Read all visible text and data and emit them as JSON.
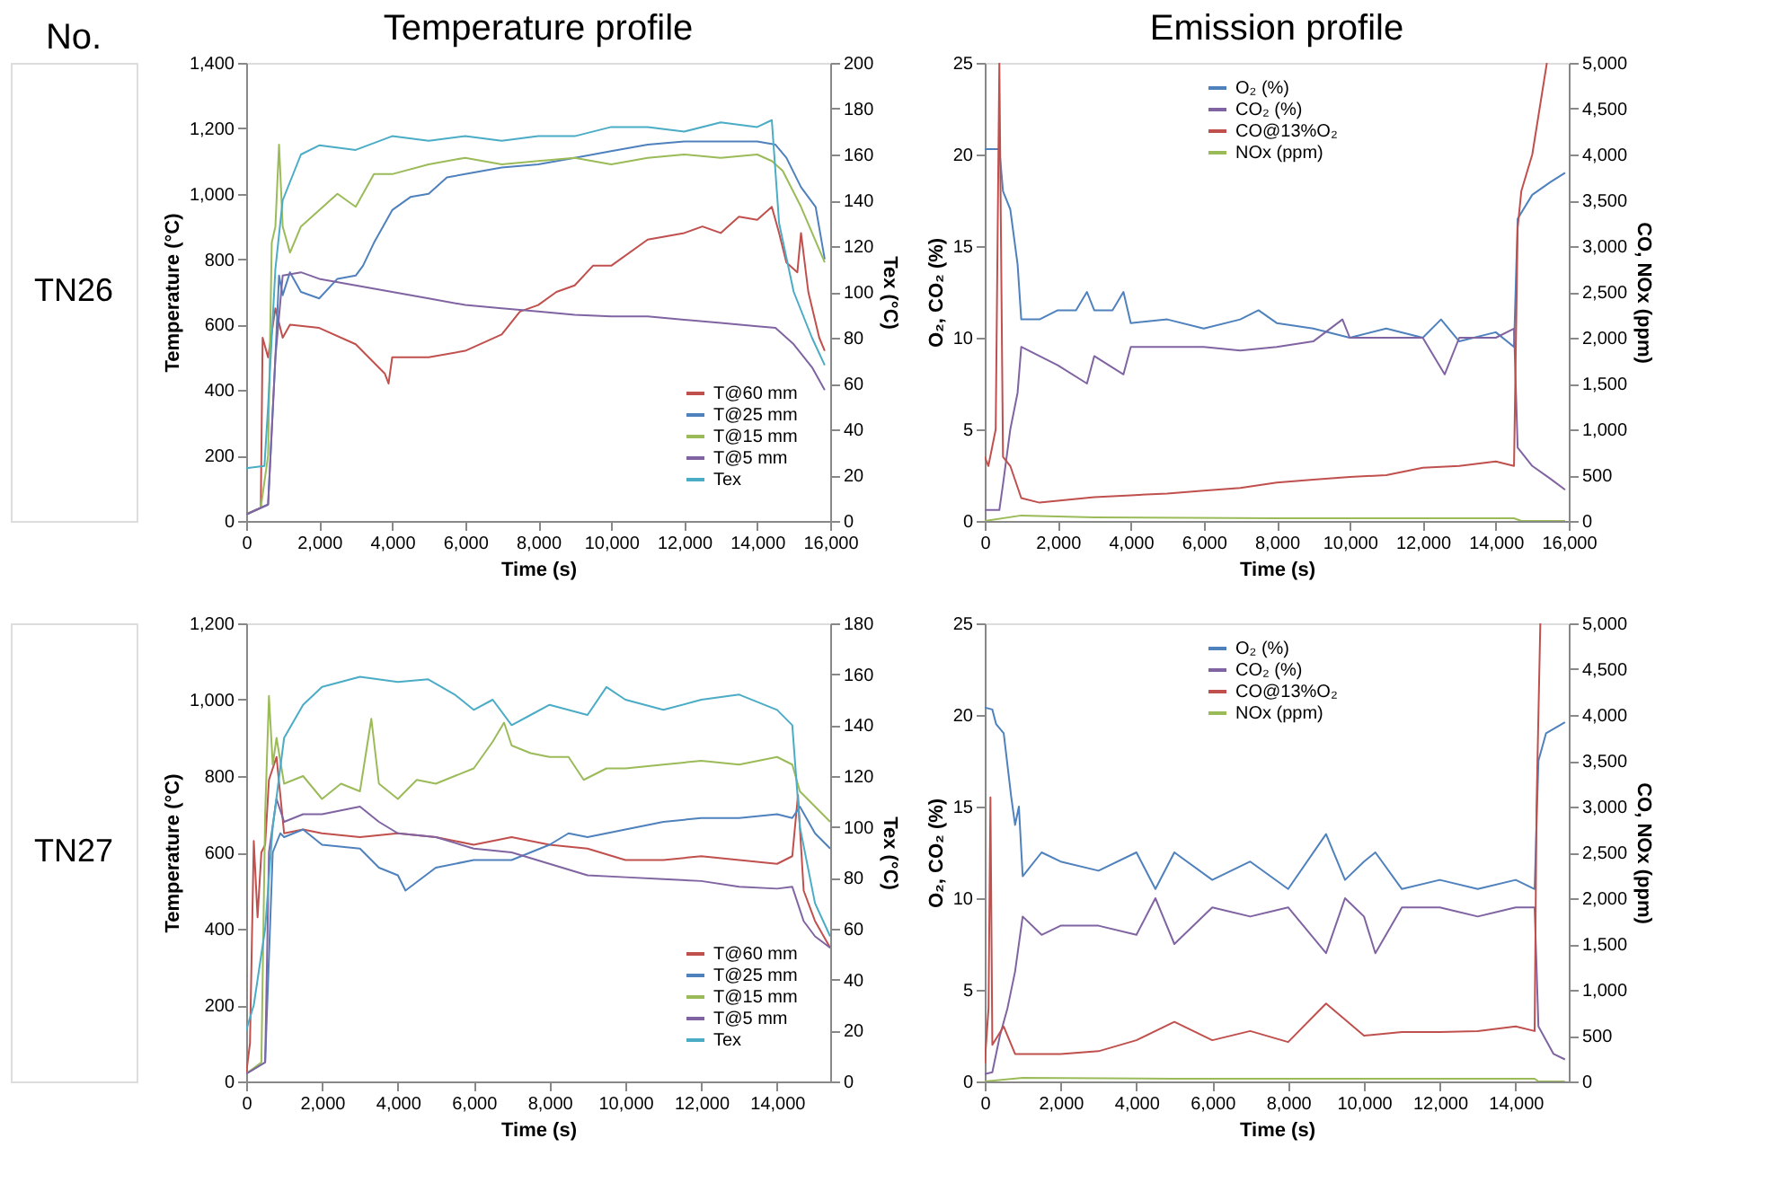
{
  "chart_data": [
    {
      "type": "line",
      "title": "Temperature profile",
      "annotations": [
        "No.",
        "TN26"
      ],
      "xlabel": "Time (s)",
      "ylabel": "Temperature (°C)",
      "y2label": "Tex (°C)",
      "xlim": [
        0,
        16000
      ],
      "xticks": [
        {
          "value": 0,
          "label": "0"
        },
        {
          "value": 2000,
          "label": "2,000"
        },
        {
          "value": 4000,
          "label": "4,000"
        },
        {
          "value": 6000,
          "label": "6,000"
        },
        {
          "value": 8000,
          "label": "8,000"
        },
        {
          "value": 10000,
          "label": "10,000"
        },
        {
          "value": 12000,
          "label": "12,000"
        },
        {
          "value": 14000,
          "label": "14,000"
        },
        {
          "value": 16000,
          "label": "16,000"
        }
      ],
      "ylim": [
        0,
        1400
      ],
      "yticks": [
        0,
        200,
        400,
        600,
        800,
        {
          "value": 1000,
          "label": "1,000"
        },
        {
          "value": 1200,
          "label": "1,200"
        },
        {
          "value": 1400,
          "label": "1,400"
        }
      ],
      "y2lim": [
        0,
        200
      ],
      "y2ticks": [
        0,
        20,
        40,
        60,
        80,
        100,
        120,
        140,
        160,
        180,
        200
      ],
      "legend": "bottom right",
      "series": [
        {
          "name": "T@60 mm",
          "color": "#c0504d",
          "x": [
            0,
            400,
            450,
            600,
            800,
            1000,
            1200,
            2000,
            3000,
            3800,
            3900,
            4000,
            5000,
            6000,
            7000,
            7500,
            8000,
            8500,
            9000,
            9500,
            10000,
            11000,
            12000,
            12500,
            13000,
            13500,
            14000,
            14400,
            14600,
            14800,
            15100,
            15200,
            15400,
            15700,
            15850
          ],
          "values": [
            20,
            40,
            560,
            500,
            650,
            560,
            600,
            590,
            540,
            450,
            420,
            500,
            500,
            520,
            570,
            640,
            660,
            700,
            720,
            780,
            780,
            860,
            880,
            900,
            880,
            930,
            920,
            960,
            880,
            790,
            760,
            880,
            700,
            560,
            520
          ]
        },
        {
          "name": "T@25 mm",
          "color": "#4f81bd",
          "x": [
            0,
            600,
            800,
            900,
            1000,
            1200,
            1500,
            2000,
            2500,
            3000,
            3200,
            3500,
            4000,
            4500,
            5000,
            5500,
            6000,
            7000,
            8000,
            9000,
            10000,
            11000,
            12000,
            13000,
            14000,
            14500,
            14800,
            15200,
            15600,
            15850
          ],
          "values": [
            20,
            50,
            500,
            750,
            690,
            760,
            700,
            680,
            740,
            750,
            780,
            850,
            950,
            990,
            1000,
            1050,
            1060,
            1080,
            1090,
            1110,
            1130,
            1150,
            1160,
            1160,
            1160,
            1150,
            1110,
            1020,
            960,
            800
          ]
        },
        {
          "name": "T@15 mm",
          "color": "#9bbb59",
          "x": [
            0,
            400,
            600,
            700,
            800,
            900,
            1000,
            1200,
            1500,
            2000,
            2500,
            3000,
            3500,
            4000,
            5000,
            6000,
            7000,
            8000,
            9000,
            10000,
            11000,
            12000,
            13000,
            14000,
            14400,
            14700,
            15200,
            15850
          ],
          "values": [
            20,
            40,
            200,
            850,
            900,
            1150,
            900,
            820,
            900,
            950,
            1000,
            960,
            1060,
            1060,
            1090,
            1110,
            1090,
            1100,
            1110,
            1090,
            1110,
            1120,
            1110,
            1120,
            1100,
            1070,
            960,
            790
          ]
        },
        {
          "name": "T@5 mm",
          "color": "#8064a2",
          "x": [
            0,
            600,
            800,
            1000,
            1500,
            2000,
            3000,
            4000,
            5000,
            6000,
            7000,
            8000,
            9000,
            10000,
            11000,
            12000,
            13000,
            14000,
            14500,
            15000,
            15500,
            15850
          ],
          "values": [
            20,
            50,
            500,
            750,
            760,
            740,
            720,
            700,
            680,
            660,
            650,
            640,
            630,
            625,
            625,
            615,
            605,
            595,
            590,
            540,
            470,
            400
          ]
        },
        {
          "name": "Tex",
          "color": "#4bacc6",
          "axis": "y2",
          "x": [
            0,
            500,
            600,
            800,
            1000,
            1500,
            2000,
            3000,
            4000,
            5000,
            6000,
            7000,
            8000,
            9000,
            10000,
            11000,
            12000,
            13000,
            14000,
            14400,
            14600,
            15000,
            15500,
            15850
          ],
          "values": [
            23,
            24,
            50,
            110,
            140,
            160,
            164,
            162,
            168,
            166,
            168,
            166,
            168,
            168,
            172,
            172,
            170,
            174,
            172,
            175,
            130,
            100,
            80,
            68
          ]
        }
      ]
    },
    {
      "type": "line",
      "title": "Emission profile",
      "xlabel": "Time (s)",
      "ylabel": "O₂, CO₂ (%)",
      "y2label": "CO, NOx (ppm)",
      "xlim": [
        0,
        16000
      ],
      "xticks": [
        {
          "value": 0,
          "label": "0"
        },
        {
          "value": 2000,
          "label": "2,000"
        },
        {
          "value": 4000,
          "label": "4,000"
        },
        {
          "value": 6000,
          "label": "6,000"
        },
        {
          "value": 8000,
          "label": "8,000"
        },
        {
          "value": 10000,
          "label": "10,000"
        },
        {
          "value": 12000,
          "label": "12,000"
        },
        {
          "value": 14000,
          "label": "14,000"
        },
        {
          "value": 16000,
          "label": "16,000"
        }
      ],
      "ylim": [
        0,
        25
      ],
      "yticks": [
        0,
        5,
        10,
        15,
        20,
        25
      ],
      "y2lim": [
        0,
        5000
      ],
      "y2ticks": [
        0,
        500,
        {
          "value": 1000,
          "label": "1,000"
        },
        {
          "value": 1500,
          "label": "1,500"
        },
        {
          "value": 2000,
          "label": "2,000"
        },
        {
          "value": 2500,
          "label": "2,500"
        },
        {
          "value": 3000,
          "label": "3,000"
        },
        {
          "value": 3500,
          "label": "3,500"
        },
        {
          "value": 4000,
          "label": "4,000"
        },
        {
          "value": 4500,
          "label": "4,500"
        },
        {
          "value": 5000,
          "label": "5,000"
        }
      ],
      "legend": "top",
      "series": [
        {
          "name": "O₂ (%)",
          "color": "#4f81bd",
          "x": [
            0,
            400,
            500,
            700,
            900,
            1000,
            1500,
            2000,
            2500,
            2800,
            3000,
            3500,
            3800,
            4000,
            5000,
            6000,
            7000,
            7500,
            8000,
            9000,
            10000,
            11000,
            12000,
            12500,
            13000,
            14000,
            14500,
            14600,
            15000,
            15500,
            15900
          ],
          "values": [
            20.3,
            20.3,
            18,
            17,
            14,
            11,
            11,
            11.5,
            11.5,
            12.5,
            11.5,
            11.5,
            12.5,
            10.8,
            11,
            10.5,
            11,
            11.5,
            10.8,
            10.5,
            10,
            10.5,
            10,
            11,
            9.8,
            10.3,
            9.5,
            16.5,
            17.8,
            18.5,
            19
          ]
        },
        {
          "name": "CO₂ (%)",
          "color": "#8064a2",
          "x": [
            0,
            400,
            500,
            700,
            900,
            1000,
            1500,
            2000,
            2800,
            3000,
            3800,
            4000,
            5000,
            6000,
            7000,
            8000,
            9000,
            9800,
            10000,
            11000,
            12000,
            12600,
            13000,
            14000,
            14500,
            14600,
            15000,
            15500,
            15900
          ],
          "values": [
            0.6,
            0.6,
            2,
            5,
            7,
            9.5,
            9,
            8.5,
            7.5,
            9,
            8,
            9.5,
            9.5,
            9.5,
            9.3,
            9.5,
            9.8,
            11,
            10,
            10,
            10,
            8,
            10,
            10,
            10.5,
            4,
            3,
            2.3,
            1.7
          ]
        },
        {
          "name": "CO@13%O₂",
          "color": "#c0504d",
          "axis": "y2",
          "x": [
            0,
            100,
            300,
            400,
            500,
            700,
            1000,
            1500,
            2000,
            3000,
            4000,
            5000,
            6000,
            7000,
            8000,
            9000,
            10000,
            11000,
            12000,
            13000,
            14000,
            14500,
            14600,
            14700,
            15000,
            15400
          ],
          "values": [
            700,
            600,
            1000,
            5000,
            700,
            600,
            250,
            200,
            220,
            260,
            280,
            300,
            330,
            360,
            420,
            450,
            480,
            500,
            580,
            600,
            650,
            600,
            3200,
            3600,
            4000,
            5000
          ]
        },
        {
          "name": "NOx (ppm)",
          "color": "#9bbb59",
          "axis": "y2",
          "x": [
            0,
            1000,
            3000,
            8000,
            14500,
            14700,
            15900
          ],
          "values": [
            0,
            60,
            40,
            30,
            30,
            0,
            0
          ]
        }
      ]
    },
    {
      "type": "line",
      "annotations": [
        "TN27"
      ],
      "xlabel": "Time (s)",
      "ylabel": "Temperature (°C)",
      "y2label": "Tex (°C)",
      "xlim": [
        0,
        15400
      ],
      "xticks": [
        {
          "value": 0,
          "label": "0"
        },
        {
          "value": 2000,
          "label": "2,000"
        },
        {
          "value": 4000,
          "label": "4,000"
        },
        {
          "value": 6000,
          "label": "6,000"
        },
        {
          "value": 8000,
          "label": "8,000"
        },
        {
          "value": 10000,
          "label": "10,000"
        },
        {
          "value": 12000,
          "label": "12,000"
        },
        {
          "value": 14000,
          "label": "14,000"
        }
      ],
      "ylim": [
        0,
        1200
      ],
      "yticks": [
        0,
        200,
        400,
        600,
        800,
        {
          "value": 1000,
          "label": "1,000"
        },
        {
          "value": 1200,
          "label": "1,200"
        }
      ],
      "y2lim": [
        0,
        180
      ],
      "y2ticks": [
        0,
        20,
        40,
        60,
        80,
        100,
        120,
        140,
        160,
        180
      ],
      "legend": "bottom right",
      "series": [
        {
          "name": "T@60 mm",
          "color": "#c0504d",
          "x": [
            0,
            100,
            200,
            300,
            400,
            500,
            600,
            800,
            1000,
            1500,
            2000,
            3000,
            4000,
            5000,
            6000,
            7000,
            8000,
            9000,
            10000,
            11000,
            12000,
            13000,
            14000,
            14400,
            14550,
            14700,
            15000,
            15400
          ],
          "values": [
            20,
            100,
            630,
            430,
            600,
            620,
            790,
            850,
            650,
            660,
            650,
            640,
            650,
            640,
            620,
            640,
            620,
            610,
            580,
            580,
            590,
            580,
            570,
            590,
            750,
            500,
            420,
            350
          ]
        },
        {
          "name": "T@25 mm",
          "color": "#4f81bd",
          "x": [
            0,
            500,
            700,
            900,
            1000,
            1500,
            2000,
            3000,
            3500,
            4000,
            4200,
            5000,
            6000,
            7000,
            8000,
            8500,
            9000,
            10000,
            11000,
            12000,
            13000,
            14000,
            14400,
            14600,
            15000,
            15400
          ],
          "values": [
            20,
            50,
            600,
            650,
            640,
            660,
            620,
            610,
            560,
            540,
            500,
            560,
            580,
            580,
            620,
            650,
            640,
            660,
            680,
            690,
            690,
            700,
            690,
            720,
            650,
            610
          ]
        },
        {
          "name": "T@15 mm",
          "color": "#9bbb59",
          "x": [
            0,
            400,
            500,
            600,
            700,
            800,
            1000,
            1500,
            2000,
            2500,
            3000,
            3300,
            3500,
            4000,
            4500,
            5000,
            6000,
            6500,
            6800,
            7000,
            7500,
            8000,
            8500,
            8900,
            9500,
            10000,
            11000,
            12000,
            13000,
            14000,
            14400,
            14600,
            15000,
            15400
          ],
          "values": [
            20,
            50,
            700,
            1010,
            830,
            900,
            780,
            800,
            740,
            780,
            760,
            950,
            780,
            740,
            790,
            780,
            820,
            890,
            940,
            880,
            860,
            850,
            850,
            790,
            820,
            820,
            830,
            840,
            830,
            850,
            830,
            760,
            720,
            680
          ]
        },
        {
          "name": "T@5 mm",
          "color": "#8064a2",
          "x": [
            0,
            500,
            600,
            800,
            1000,
            1500,
            2000,
            3000,
            3500,
            4000,
            5000,
            6000,
            7000,
            8000,
            9000,
            10000,
            11000,
            12000,
            13000,
            14000,
            14400,
            14700,
            15000,
            15400
          ],
          "values": [
            20,
            50,
            600,
            740,
            680,
            700,
            700,
            720,
            680,
            650,
            640,
            610,
            600,
            570,
            540,
            535,
            530,
            525,
            510,
            505,
            510,
            420,
            380,
            350
          ]
        },
        {
          "name": "Tex",
          "color": "#4bacc6",
          "axis": "y2",
          "x": [
            0,
            200,
            500,
            700,
            1000,
            1500,
            2000,
            3000,
            4000,
            4800,
            5500,
            6000,
            6500,
            7000,
            7500,
            8000,
            9000,
            9500,
            10000,
            11000,
            12000,
            13000,
            14000,
            14400,
            14600,
            15000,
            15400
          ],
          "values": [
            20,
            30,
            60,
            100,
            135,
            148,
            155,
            159,
            157,
            158,
            152,
            146,
            150,
            140,
            144,
            148,
            144,
            155,
            150,
            146,
            150,
            152,
            146,
            140,
            100,
            70,
            57
          ]
        }
      ]
    },
    {
      "type": "line",
      "xlabel": "Time (s)",
      "ylabel": "O₂, CO₂ (%)",
      "y2label": "CO, NOx (ppm)",
      "xlim": [
        0,
        15400
      ],
      "xticks": [
        {
          "value": 0,
          "label": "0"
        },
        {
          "value": 2000,
          "label": "2,000"
        },
        {
          "value": 4000,
          "label": "4,000"
        },
        {
          "value": 6000,
          "label": "6,000"
        },
        {
          "value": 8000,
          "label": "8,000"
        },
        {
          "value": 10000,
          "label": "10,000"
        },
        {
          "value": 12000,
          "label": "12,000"
        },
        {
          "value": 14000,
          "label": "14,000"
        }
      ],
      "ylim": [
        0,
        25
      ],
      "yticks": [
        0,
        5,
        10,
        15,
        20,
        25
      ],
      "y2lim": [
        0,
        5000
      ],
      "y2ticks": [
        0,
        500,
        {
          "value": 1000,
          "label": "1,000"
        },
        {
          "value": 1500,
          "label": "1,500"
        },
        {
          "value": 2000,
          "label": "2,000"
        },
        {
          "value": 2500,
          "label": "2,500"
        },
        {
          "value": 3000,
          "label": "3,000"
        },
        {
          "value": 3500,
          "label": "3,500"
        },
        {
          "value": 4000,
          "label": "4,000"
        },
        {
          "value": 4500,
          "label": "4,500"
        },
        {
          "value": 5000,
          "label": "5,000"
        }
      ],
      "legend": "top",
      "series": [
        {
          "name": "O₂ (%)",
          "color": "#4f81bd",
          "x": [
            0,
            200,
            300,
            500,
            700,
            800,
            900,
            1000,
            1500,
            2000,
            3000,
            4000,
            4500,
            5000,
            6000,
            7000,
            8000,
            9000,
            9500,
            10000,
            10300,
            11000,
            12000,
            13000,
            14000,
            14500,
            14600,
            14800,
            15300
          ],
          "values": [
            20.4,
            20.3,
            19.5,
            19,
            15.5,
            14,
            15,
            11.2,
            12.5,
            12,
            11.5,
            12.5,
            10.5,
            12.5,
            11,
            12,
            10.5,
            13.5,
            11,
            12,
            12.5,
            10.5,
            11,
            10.5,
            11,
            10.5,
            17.5,
            19,
            19.6
          ]
        },
        {
          "name": "CO₂ (%)",
          "color": "#8064a2",
          "x": [
            0,
            200,
            400,
            600,
            800,
            1000,
            1500,
            2000,
            3000,
            4000,
            4500,
            5000,
            6000,
            7000,
            8000,
            9000,
            9500,
            10000,
            10300,
            11000,
            12000,
            13000,
            14000,
            14500,
            14600,
            15000,
            15300
          ],
          "values": [
            0.4,
            0.5,
            2.5,
            4,
            6,
            9,
            8,
            8.5,
            8.5,
            8,
            10,
            7.5,
            9.5,
            9,
            9.5,
            7,
            10,
            9,
            7,
            9.5,
            9.5,
            9,
            9.5,
            9.5,
            3,
            1.5,
            1.2
          ]
        },
        {
          "name": "CO@13%O₂",
          "color": "#c0504d",
          "axis": "y2",
          "x": [
            0,
            100,
            150,
            200,
            500,
            800,
            1000,
            2000,
            3000,
            4000,
            5000,
            6000,
            7000,
            8000,
            9000,
            10000,
            11000,
            12000,
            13000,
            14000,
            14500,
            14550,
            14650
          ],
          "values": [
            200,
            800,
            3100,
            400,
            600,
            300,
            300,
            300,
            330,
            450,
            650,
            450,
            550,
            430,
            850,
            500,
            540,
            540,
            550,
            600,
            550,
            3000,
            5000
          ]
        },
        {
          "name": "NOx (ppm)",
          "color": "#9bbb59",
          "axis": "y2",
          "x": [
            0,
            1000,
            5000,
            14500,
            14600,
            15300
          ],
          "values": [
            0,
            40,
            30,
            30,
            0,
            0
          ]
        }
      ]
    }
  ]
}
